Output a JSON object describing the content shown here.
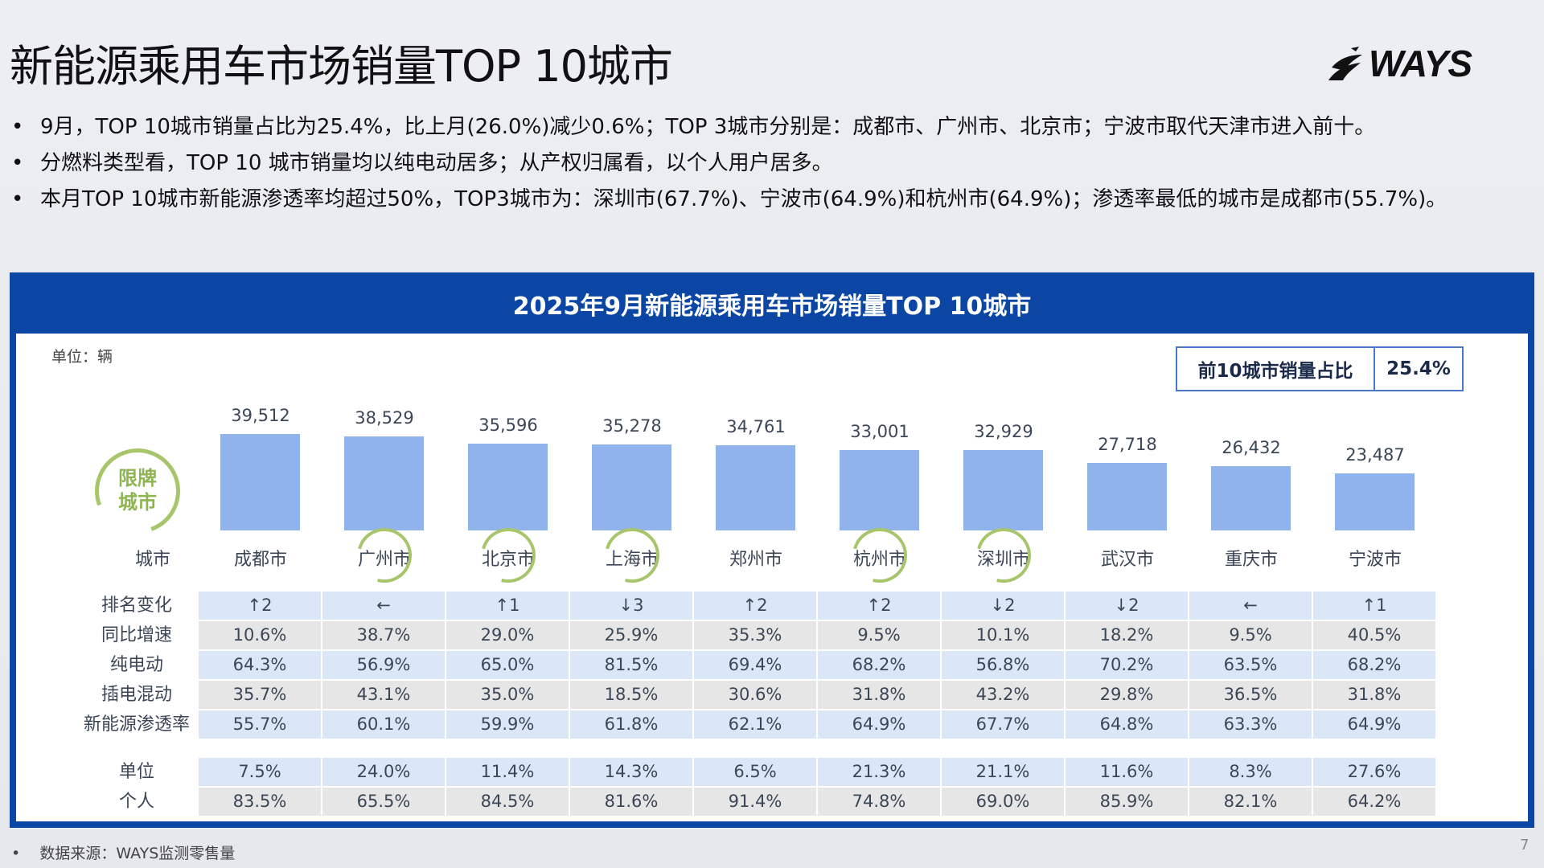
{
  "title": "新能源乘用车市场销量TOP 10城市",
  "logo_text": "WAYS",
  "bullets": [
    "9月，TOP 10城市销量占比为25.4%，比上月(26.0%)减少0.6%；TOP 3城市分别是：成都市、广州市、北京市；宁波市取代天津市进入前十。",
    "分燃料类型看，TOP 10 城市销量均以纯电动居多；从产权归属看，以个人用户居多。",
    "本月TOP 10城市新能源渗透率均超过50%，TOP3城市为：深圳市(67.7%)、宁波市(64.9%)和杭州市(64.9%)；渗透率最低的城市是成都市(55.7%)。"
  ],
  "panel": {
    "title": "2025年9月新能源乘用车市场销量TOP 10城市",
    "unit": "单位：辆",
    "share_label": "前10城市销量占比",
    "share_value": "25.4%",
    "badge": "限牌\n城市",
    "badge_line1": "限牌",
    "badge_line2": "城市",
    "city_header": "城市"
  },
  "chart_data": {
    "type": "bar",
    "categories": [
      "成都市",
      "广州市",
      "北京市",
      "上海市",
      "郑州市",
      "杭州市",
      "深圳市",
      "武汉市",
      "重庆市",
      "宁波市"
    ],
    "values": [
      39512,
      38529,
      35596,
      35278,
      34761,
      33001,
      32929,
      27718,
      26432,
      23487
    ],
    "value_labels": [
      "39,512",
      "38,529",
      "35,596",
      "35,278",
      "34,761",
      "33,001",
      "32,929",
      "27,718",
      "26,432",
      "23,487"
    ],
    "restricted_plate": [
      false,
      true,
      true,
      true,
      false,
      true,
      true,
      false,
      false,
      false
    ],
    "bar_color": "#91b3ec",
    "ring_color": "#a7c66c"
  },
  "table": {
    "rows": [
      {
        "label": "排名变化",
        "style": "blue",
        "values": [
          "↑2",
          "←",
          "↑1",
          "↓3",
          "↑2",
          "↑2",
          "↓2",
          "↓2",
          "←",
          "↑1"
        ]
      },
      {
        "label": "同比增速",
        "style": "grey",
        "values": [
          "10.6%",
          "38.7%",
          "29.0%",
          "25.9%",
          "35.3%",
          "9.5%",
          "10.1%",
          "18.2%",
          "9.5%",
          "40.5%"
        ]
      },
      {
        "label": "纯电动",
        "style": "blue",
        "values": [
          "64.3%",
          "56.9%",
          "65.0%",
          "81.5%",
          "69.4%",
          "68.2%",
          "56.8%",
          "70.2%",
          "63.5%",
          "68.2%"
        ]
      },
      {
        "label": "插电混动",
        "style": "grey",
        "values": [
          "35.7%",
          "43.1%",
          "35.0%",
          "18.5%",
          "30.6%",
          "31.8%",
          "43.2%",
          "29.8%",
          "36.5%",
          "31.8%"
        ]
      },
      {
        "label": "新能源渗透率",
        "style": "blue",
        "values": [
          "55.7%",
          "60.1%",
          "59.9%",
          "61.8%",
          "62.1%",
          "64.9%",
          "67.7%",
          "64.8%",
          "63.3%",
          "64.9%"
        ]
      },
      {
        "label": "单位",
        "style": "blue",
        "values": [
          "7.5%",
          "24.0%",
          "11.4%",
          "14.3%",
          "6.5%",
          "21.3%",
          "21.1%",
          "11.6%",
          "8.3%",
          "27.6%"
        ]
      },
      {
        "label": "个人",
        "style": "grey",
        "values": [
          "83.5%",
          "65.5%",
          "84.5%",
          "81.6%",
          "91.4%",
          "74.8%",
          "69.0%",
          "85.9%",
          "82.1%",
          "64.2%"
        ]
      }
    ]
  },
  "footer": {
    "source": "数据来源：WAYS监测零售量",
    "page": "7"
  }
}
